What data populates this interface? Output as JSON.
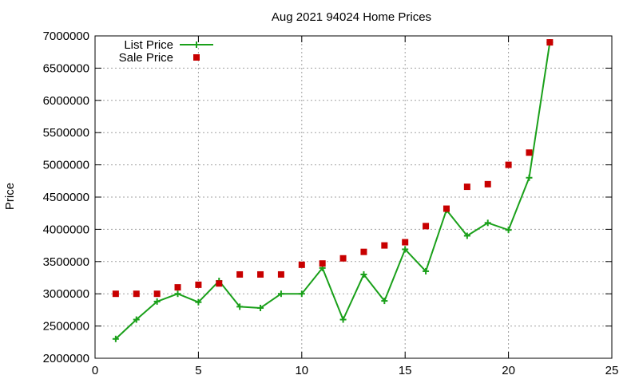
{
  "chart_data": {
    "type": "line",
    "title": "Aug 2021 94024 Home Prices",
    "xlabel": "",
    "ylabel": "Price",
    "xlim": [
      0,
      25
    ],
    "ylim": [
      2000000,
      7000000
    ],
    "xticks": [
      0,
      5,
      10,
      15,
      20,
      25
    ],
    "yticks": [
      2000000,
      2500000,
      3000000,
      3500000,
      4000000,
      4500000,
      5000000,
      5500000,
      6000000,
      6500000,
      7000000
    ],
    "grid": true,
    "legend": "top-left",
    "series": [
      {
        "name": "List Price",
        "style": "line-plus",
        "color": "#1aa01a",
        "x": [
          1,
          2,
          3,
          4,
          5,
          6,
          7,
          8,
          9,
          10,
          11,
          12,
          13,
          14,
          15,
          16,
          17,
          18,
          19,
          20,
          21,
          22
        ],
        "y": [
          2300000,
          2600000,
          2880000,
          3000000,
          2870000,
          3200000,
          2800000,
          2780000,
          3000000,
          3000000,
          3400000,
          2600000,
          3300000,
          2890000,
          3690000,
          3350000,
          4300000,
          3900000,
          4100000,
          3990000,
          4800000,
          6900000
        ]
      },
      {
        "name": "Sale Price",
        "style": "square",
        "color": "#c80000",
        "x": [
          1,
          2,
          3,
          4,
          5,
          6,
          7,
          8,
          9,
          10,
          11,
          12,
          13,
          14,
          15,
          16,
          17,
          18,
          19,
          20,
          21,
          22
        ],
        "y": [
          3000000,
          3000000,
          3000000,
          3100000,
          3140000,
          3160000,
          3300000,
          3300000,
          3300000,
          3450000,
          3470000,
          3550000,
          3650000,
          3750000,
          3800000,
          4050000,
          4320000,
          4660000,
          4700000,
          5000000,
          5190000,
          6900000
        ]
      }
    ]
  }
}
